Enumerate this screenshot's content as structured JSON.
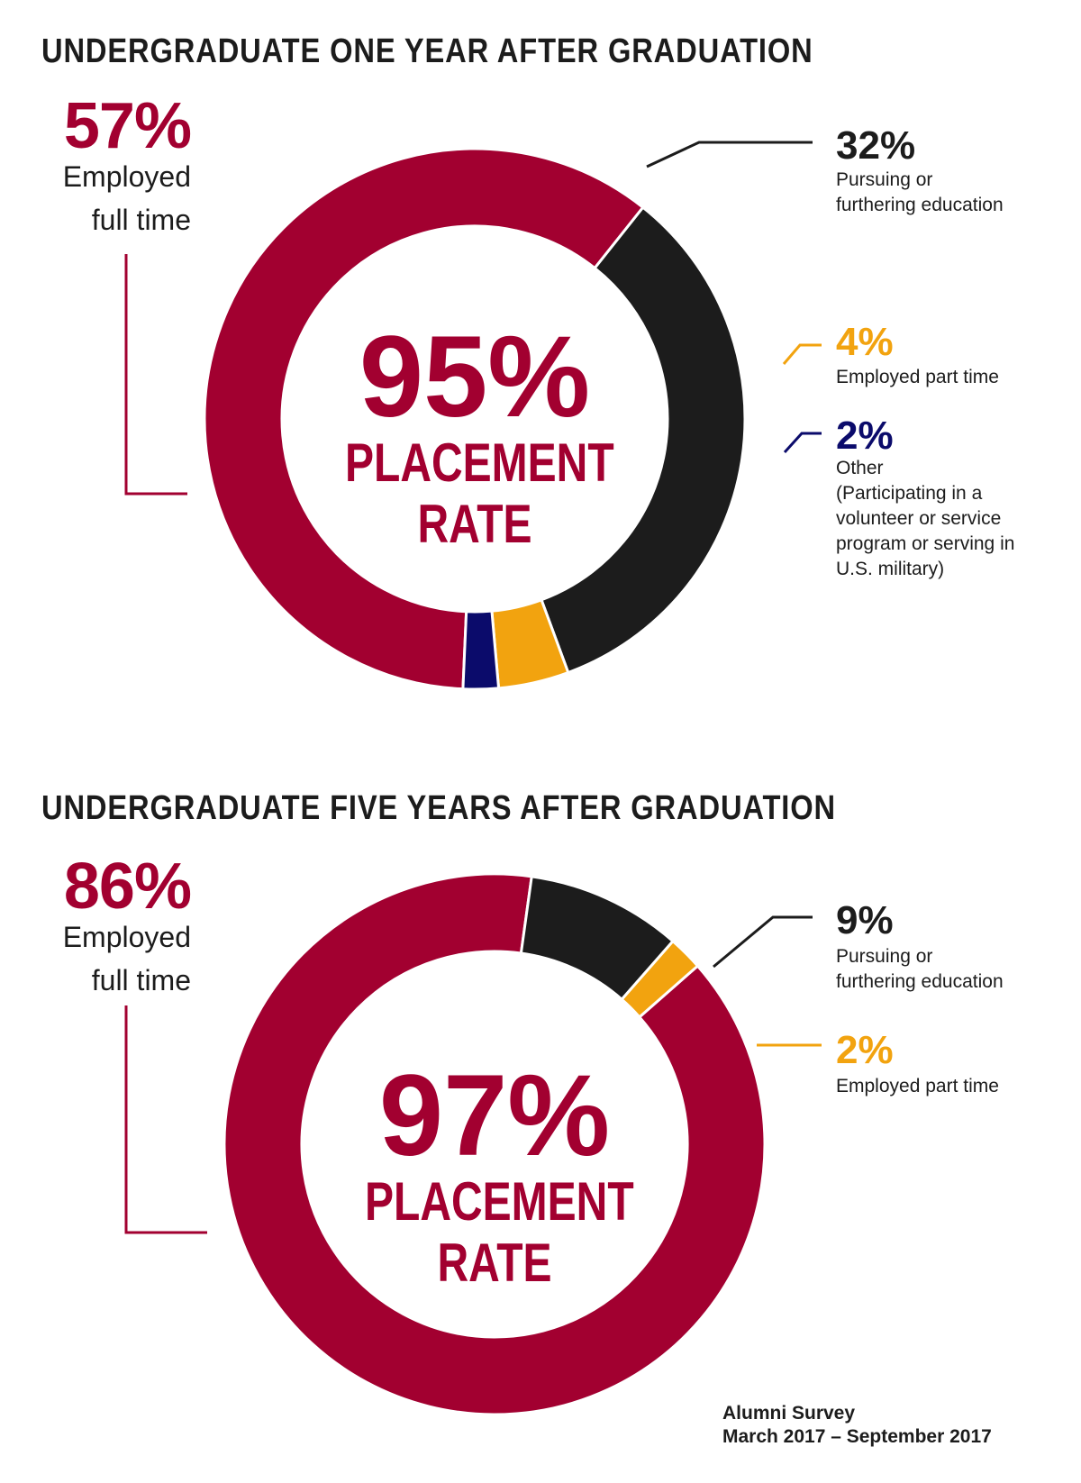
{
  "colors": {
    "full_time": "#a20030",
    "education": "#1c1c1c",
    "part_time": "#f2a30f",
    "other": "#0b0b6b",
    "leader_line": "#1c1c1c"
  },
  "chart_data": [
    {
      "type": "pie",
      "variant": "donut",
      "title": "UNDERGRADUATE ONE YEAR AFTER GRADUATION",
      "center_value": "95%",
      "center_label": [
        "PLACEMENT",
        "RATE"
      ],
      "slices": [
        {
          "label": "Employed full time",
          "value": 57,
          "pct_label": "57%",
          "lines": [
            "Employed",
            "full time"
          ],
          "color_key": "full_time"
        },
        {
          "label": "Pursuing or furthering education",
          "value": 32,
          "pct_label": "32%",
          "lines": [
            "Pursuing or",
            "furthering education"
          ],
          "color_key": "education"
        },
        {
          "label": "Employed part time",
          "value": 4,
          "pct_label": "4%",
          "lines": [
            "Employed part time"
          ],
          "color_key": "part_time"
        },
        {
          "label": "Other (Participating in a volunteer or service program or serving in U.S. military)",
          "value": 2,
          "pct_label": "2%",
          "lines": [
            "Other",
            "(Participating in a",
            "volunteer or service",
            "program or serving in",
            "U.S. military)"
          ],
          "color_key": "other"
        }
      ]
    },
    {
      "type": "pie",
      "variant": "donut",
      "title": "UNDERGRADUATE FIVE YEARS AFTER GRADUATION",
      "center_value": "97%",
      "center_label": [
        "PLACEMENT",
        "RATE"
      ],
      "slices": [
        {
          "label": "Employed full time",
          "value": 86,
          "pct_label": "86%",
          "lines": [
            "Employed",
            "full time"
          ],
          "color_key": "full_time"
        },
        {
          "label": "Pursuing or furthering education",
          "value": 9,
          "pct_label": "9%",
          "lines": [
            "Pursuing or",
            "furthering education"
          ],
          "color_key": "education"
        },
        {
          "label": "Employed part time",
          "value": 2,
          "pct_label": "2%",
          "lines": [
            "Employed part time"
          ],
          "color_key": "part_time"
        }
      ]
    }
  ],
  "source": {
    "line1": "Alumni Survey",
    "line2": "March 2017 – September 2017"
  }
}
